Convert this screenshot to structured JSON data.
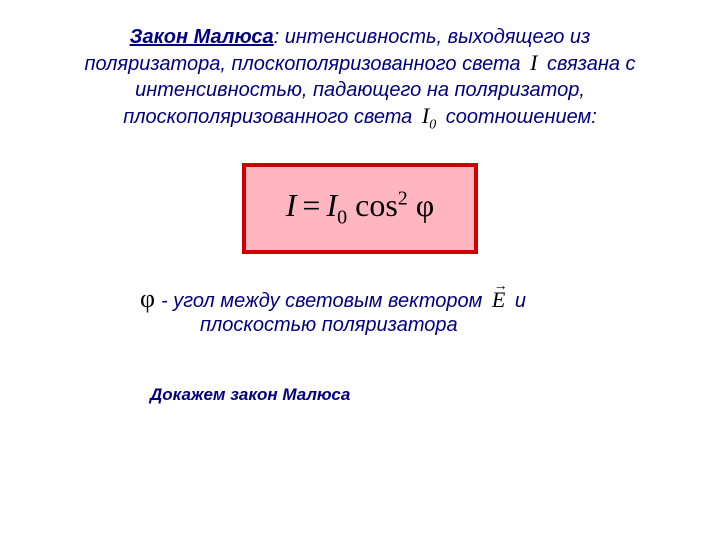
{
  "colors": {
    "text_blue": "#000080",
    "box_border": "#cc0000",
    "box_fill": "#ffb6c1",
    "background": "#ffffff",
    "symbol_black": "#000000"
  },
  "fonts": {
    "body_family": "Arial",
    "math_family": "Times New Roman",
    "body_size_pt": 15,
    "formula_size_pt": 24
  },
  "header": {
    "title": "Закон Малюса",
    "line1_after_title": ": интенсивность, выходящего из",
    "line2_pre": "поляризатора, плоскополяризованного света ",
    "sym_I": "I",
    "line2_post": " связана с",
    "line3": "интенсивностью, падающего на поляризатор,",
    "line4_pre": "плоскополяризованного света ",
    "sym_I0": "I",
    "sym_I0_sub": "0",
    "line4_post": " соотношением:"
  },
  "formula": {
    "lhs": "I",
    "eq": "=",
    "I": "I",
    "sub0": "0",
    "space": " ",
    "cos": "cos",
    "sup2": "2",
    "phi": "φ"
  },
  "angle": {
    "phi_sym": "φ",
    "line1_pre": "- угол между световым вектором ",
    "vec_E": "E",
    "vec_arrow": "→",
    "line1_post": " и",
    "line2": "плоскостью поляризатора"
  },
  "proof": {
    "text": "Докажем закон Малюса"
  }
}
